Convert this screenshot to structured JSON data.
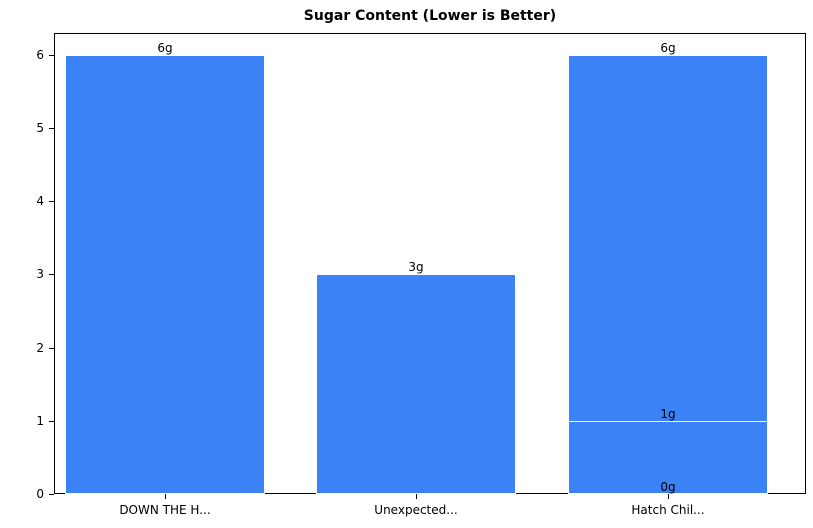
{
  "chart_data": {
    "type": "bar",
    "title": "Sugar Content (Lower is Better)",
    "xlabel": "",
    "ylabel": "",
    "ylim": [
      0,
      6.3
    ],
    "yticks": [
      0,
      1,
      2,
      3,
      4,
      5,
      6
    ],
    "grid": false,
    "legend": null,
    "categories": [
      "DOWN THE H...",
      "Unexpected...",
      "Hatch Chil..."
    ],
    "bar_color": "#3b82f6",
    "bars": [
      {
        "category": "DOWN THE H...",
        "value": 6,
        "label": "6g"
      },
      {
        "category": "Unexpected...",
        "value": 3,
        "label": "3g"
      },
      {
        "category": "Hatch Chil...",
        "value": 6,
        "label": "6g"
      },
      {
        "category": "Hatch Chil...",
        "value": 1,
        "label": "1g"
      },
      {
        "category": "Hatch Chil...",
        "value": 0,
        "label": "0g"
      }
    ]
  },
  "y_tick_labels": [
    "0",
    "1",
    "2",
    "3",
    "4",
    "5",
    "6"
  ]
}
